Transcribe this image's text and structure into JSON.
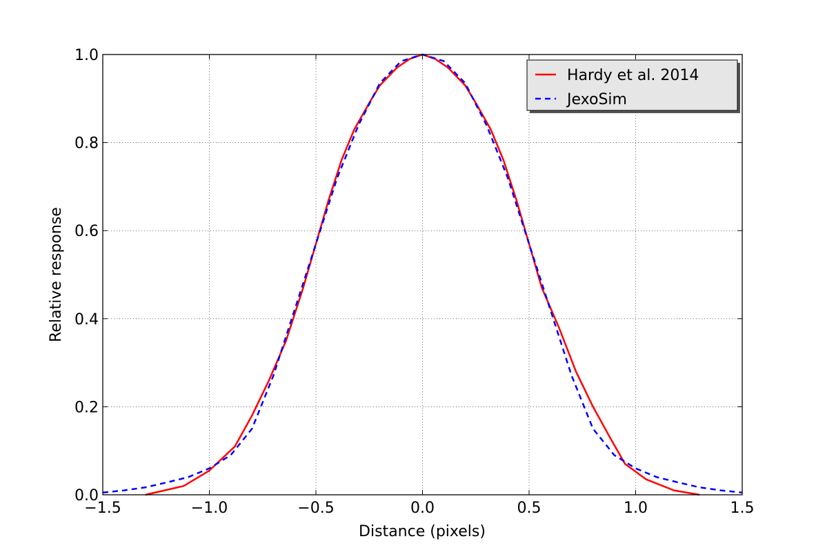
{
  "chart_data": {
    "type": "line",
    "title": "",
    "xlabel": "Distance (pixels)",
    "ylabel": "Relative response",
    "xlim": [
      -1.5,
      1.5
    ],
    "ylim": [
      0.0,
      1.0
    ],
    "xticks": [
      -1.5,
      -1.0,
      -0.5,
      0.0,
      0.5,
      1.0,
      1.5
    ],
    "xtick_labels": [
      "−1.5",
      "−1.0",
      "−0.5",
      "0.0",
      "0.5",
      "1.0",
      "1.5"
    ],
    "yticks": [
      0.0,
      0.2,
      0.4,
      0.6,
      0.8,
      1.0
    ],
    "ytick_labels": [
      "0.0",
      "0.2",
      "0.4",
      "0.6",
      "0.8",
      "1.0"
    ],
    "grid": true,
    "legend_position": "top-right",
    "series": [
      {
        "name": "Hardy et al. 2014",
        "color": "#ff0000",
        "style": "solid",
        "x": [
          -1.3,
          -1.12,
          -1.0,
          -0.88,
          -0.8,
          -0.72,
          -0.64,
          -0.56,
          -0.5,
          -0.44,
          -0.38,
          -0.32,
          -0.25,
          -0.2,
          -0.12,
          -0.06,
          0.0,
          0.06,
          0.12,
          0.2,
          0.25,
          0.32,
          0.38,
          0.44,
          0.5,
          0.56,
          0.64,
          0.72,
          0.8,
          0.88,
          0.95,
          1.05,
          1.18,
          1.3
        ],
        "y": [
          0.0,
          0.02,
          0.055,
          0.11,
          0.18,
          0.26,
          0.35,
          0.47,
          0.57,
          0.67,
          0.76,
          0.83,
          0.89,
          0.93,
          0.97,
          0.99,
          1.0,
          0.99,
          0.97,
          0.93,
          0.89,
          0.83,
          0.76,
          0.67,
          0.57,
          0.47,
          0.38,
          0.28,
          0.2,
          0.13,
          0.07,
          0.035,
          0.01,
          0.0
        ]
      },
      {
        "name": "JexoSim",
        "color": "#0000ff",
        "style": "dashed",
        "x": [
          -1.5,
          -1.4,
          -1.3,
          -1.2,
          -1.1,
          -1.0,
          -0.9,
          -0.8,
          -0.7,
          -0.6,
          -0.5,
          -0.4,
          -0.3,
          -0.2,
          -0.1,
          0.0,
          0.1,
          0.2,
          0.3,
          0.4,
          0.5,
          0.6,
          0.7,
          0.8,
          0.9,
          1.0,
          1.1,
          1.2,
          1.3,
          1.4,
          1.5
        ],
        "y": [
          0.005,
          0.01,
          0.017,
          0.028,
          0.04,
          0.06,
          0.09,
          0.15,
          0.27,
          0.42,
          0.57,
          0.72,
          0.84,
          0.935,
          0.985,
          1.0,
          0.985,
          0.935,
          0.84,
          0.72,
          0.57,
          0.42,
          0.27,
          0.15,
          0.09,
          0.06,
          0.04,
          0.028,
          0.017,
          0.01,
          0.005
        ]
      }
    ]
  }
}
